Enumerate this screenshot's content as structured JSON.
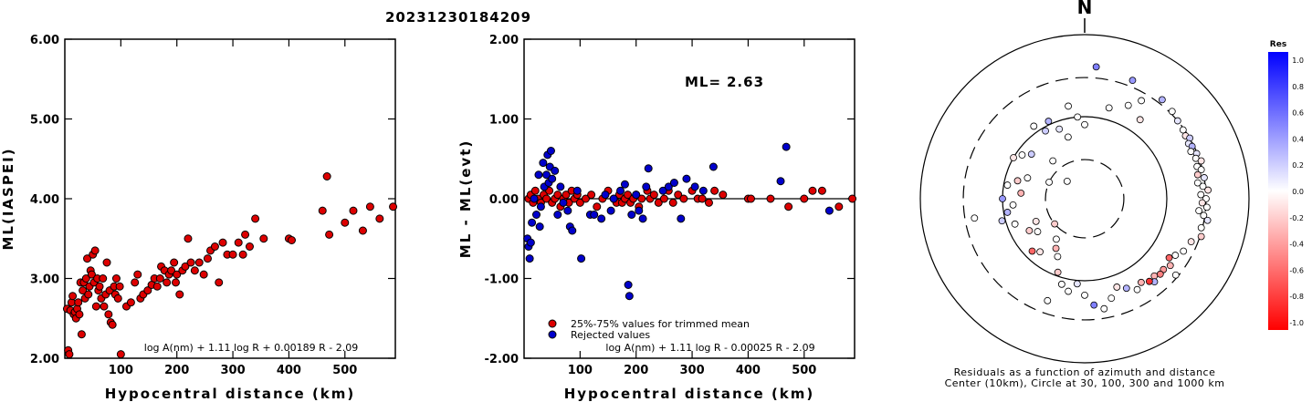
{
  "title": "20231230184209",
  "chart_data": [
    {
      "type": "scatter",
      "xlabel": "Hypocentral distance (km)",
      "ylabel": "ML(IASPEI)",
      "xlim": [
        0,
        590
      ],
      "ylim": [
        2.0,
        6.0
      ],
      "xticks": [
        "100",
        "200",
        "300",
        "400",
        "500"
      ],
      "yticks": [
        "2.00",
        "3.00",
        "4.00",
        "5.00",
        "6.00"
      ],
      "formula": "log A(nm) + 1.11 log R + 0.00189 R - 2.09",
      "color": "#dd0000",
      "points": [
        [
          4,
          2.62
        ],
        [
          6,
          2.1
        ],
        [
          8,
          2.05
        ],
        [
          10,
          2.6
        ],
        [
          12,
          2.7
        ],
        [
          14,
          2.78
        ],
        [
          16,
          2.55
        ],
        [
          18,
          2.58
        ],
        [
          20,
          2.5
        ],
        [
          22,
          2.62
        ],
        [
          24,
          2.7
        ],
        [
          26,
          2.55
        ],
        [
          28,
          2.95
        ],
        [
          30,
          2.3
        ],
        [
          32,
          2.85
        ],
        [
          34,
          2.95
        ],
        [
          36,
          2.75
        ],
        [
          38,
          3.0
        ],
        [
          40,
          3.25
        ],
        [
          42,
          2.8
        ],
        [
          44,
          2.9
        ],
        [
          46,
          3.1
        ],
        [
          48,
          3.05
        ],
        [
          50,
          3.3
        ],
        [
          52,
          2.95
        ],
        [
          54,
          3.35
        ],
        [
          56,
          2.65
        ],
        [
          58,
          3.0
        ],
        [
          60,
          2.85
        ],
        [
          62,
          2.9
        ],
        [
          65,
          2.75
        ],
        [
          68,
          3.0
        ],
        [
          70,
          2.65
        ],
        [
          73,
          2.8
        ],
        [
          75,
          3.2
        ],
        [
          78,
          2.55
        ],
        [
          80,
          2.85
        ],
        [
          82,
          2.45
        ],
        [
          85,
          2.42
        ],
        [
          88,
          2.9
        ],
        [
          90,
          2.8
        ],
        [
          92,
          3.0
        ],
        [
          95,
          2.75
        ],
        [
          98,
          2.9
        ],
        [
          100,
          2.05
        ],
        [
          110,
          2.65
        ],
        [
          118,
          2.7
        ],
        [
          125,
          2.95
        ],
        [
          130,
          3.05
        ],
        [
          135,
          2.75
        ],
        [
          140,
          2.8
        ],
        [
          148,
          2.85
        ],
        [
          155,
          2.92
        ],
        [
          160,
          3.0
        ],
        [
          165,
          2.9
        ],
        [
          170,
          3.0
        ],
        [
          172,
          3.15
        ],
        [
          178,
          3.1
        ],
        [
          182,
          2.95
        ],
        [
          186,
          3.05
        ],
        [
          190,
          3.1
        ],
        [
          195,
          3.2
        ],
        [
          198,
          2.95
        ],
        [
          200,
          3.05
        ],
        [
          205,
          2.8
        ],
        [
          210,
          3.1
        ],
        [
          215,
          3.15
        ],
        [
          220,
          3.5
        ],
        [
          225,
          3.2
        ],
        [
          232,
          3.1
        ],
        [
          240,
          3.2
        ],
        [
          248,
          3.05
        ],
        [
          255,
          3.25
        ],
        [
          260,
          3.35
        ],
        [
          268,
          3.4
        ],
        [
          275,
          2.95
        ],
        [
          282,
          3.45
        ],
        [
          290,
          3.3
        ],
        [
          300,
          3.3
        ],
        [
          310,
          3.45
        ],
        [
          318,
          3.3
        ],
        [
          322,
          3.55
        ],
        [
          330,
          3.4
        ],
        [
          340,
          3.75
        ],
        [
          355,
          3.5
        ],
        [
          400,
          3.5
        ],
        [
          405,
          3.48
        ],
        [
          460,
          3.85
        ],
        [
          468,
          4.28
        ],
        [
          472,
          3.55
        ],
        [
          500,
          3.7
        ],
        [
          515,
          3.85
        ],
        [
          532,
          3.6
        ],
        [
          545,
          3.9
        ],
        [
          562,
          3.75
        ],
        [
          586,
          3.9
        ]
      ]
    },
    {
      "type": "scatter",
      "xlabel": "Hypocentral distance (km)",
      "ylabel": "ML - ML(evt)",
      "xlim": [
        0,
        590
      ],
      "ylim": [
        -2.0,
        2.0
      ],
      "xticks": [
        "100",
        "200",
        "300",
        "400",
        "500"
      ],
      "yticks": [
        "-2.00",
        "-1.00",
        "0.00",
        "1.00",
        "2.00"
      ],
      "ml_label": "ML=",
      "ml_value": "2.63",
      "legend": [
        "25%-75% values for trimmed mean",
        "Rejected values"
      ],
      "formula": "log A(nm) + 1.11 log R - 0.00025 R - 2.09",
      "trimmed_color": "#dd0000",
      "rejected_color": "#0000cc",
      "trimmed": [
        [
          8,
          0.0
        ],
        [
          12,
          0.05
        ],
        [
          16,
          -0.05
        ],
        [
          20,
          0.1
        ],
        [
          25,
          0.0
        ],
        [
          30,
          -0.05
        ],
        [
          35,
          0.05
        ],
        [
          40,
          0.0
        ],
        [
          45,
          0.1
        ],
        [
          50,
          -0.05
        ],
        [
          55,
          0.0
        ],
        [
          60,
          0.05
        ],
        [
          65,
          -0.1
        ],
        [
          70,
          0.0
        ],
        [
          75,
          0.05
        ],
        [
          80,
          -0.05
        ],
        [
          85,
          0.1
        ],
        [
          90,
          0.0
        ],
        [
          95,
          0.05
        ],
        [
          100,
          -0.05
        ],
        [
          110,
          0.0
        ],
        [
          120,
          0.05
        ],
        [
          130,
          -0.1
        ],
        [
          140,
          0.0
        ],
        [
          150,
          0.1
        ],
        [
          160,
          0.0
        ],
        [
          165,
          -0.05
        ],
        [
          170,
          0.05
        ],
        [
          175,
          -0.05
        ],
        [
          180,
          0.0
        ],
        [
          185,
          0.05
        ],
        [
          190,
          -0.05
        ],
        [
          195,
          0.0
        ],
        [
          200,
          0.05
        ],
        [
          205,
          -0.1
        ],
        [
          210,
          0.0
        ],
        [
          220,
          0.1
        ],
        [
          225,
          0.0
        ],
        [
          232,
          0.05
        ],
        [
          240,
          -0.05
        ],
        [
          250,
          0.0
        ],
        [
          258,
          0.1
        ],
        [
          266,
          -0.05
        ],
        [
          275,
          0.05
        ],
        [
          285,
          0.0
        ],
        [
          300,
          0.1
        ],
        [
          310,
          0.0
        ],
        [
          318,
          0.0
        ],
        [
          330,
          -0.05
        ],
        [
          340,
          0.1
        ],
        [
          355,
          0.05
        ],
        [
          400,
          0.0
        ],
        [
          405,
          0.0
        ],
        [
          440,
          0.0
        ],
        [
          472,
          -0.1
        ],
        [
          500,
          0.0
        ],
        [
          515,
          0.1
        ],
        [
          532,
          0.1
        ],
        [
          562,
          -0.1
        ],
        [
          586,
          0.0
        ]
      ],
      "rejected": [
        [
          6,
          -0.5
        ],
        [
          8,
          -0.6
        ],
        [
          10,
          -0.75
        ],
        [
          12,
          -0.55
        ],
        [
          14,
          -0.3
        ],
        [
          18,
          0.0
        ],
        [
          22,
          -0.2
        ],
        [
          26,
          0.3
        ],
        [
          28,
          -0.35
        ],
        [
          30,
          -0.1
        ],
        [
          34,
          0.45
        ],
        [
          36,
          0.15
        ],
        [
          40,
          0.3
        ],
        [
          42,
          0.55
        ],
        [
          44,
          0.2
        ],
        [
          46,
          0.4
        ],
        [
          48,
          0.6
        ],
        [
          50,
          0.25
        ],
        [
          55,
          0.35
        ],
        [
          60,
          -0.2
        ],
        [
          65,
          0.15
        ],
        [
          70,
          -0.05
        ],
        [
          78,
          -0.15
        ],
        [
          82,
          -0.35
        ],
        [
          86,
          -0.4
        ],
        [
          95,
          0.1
        ],
        [
          102,
          -0.75
        ],
        [
          118,
          -0.2
        ],
        [
          125,
          -0.2
        ],
        [
          138,
          -0.25
        ],
        [
          145,
          0.05
        ],
        [
          155,
          -0.15
        ],
        [
          160,
          0.0
        ],
        [
          172,
          0.1
        ],
        [
          180,
          0.18
        ],
        [
          186,
          -1.08
        ],
        [
          188,
          -1.22
        ],
        [
          192,
          -0.2
        ],
        [
          200,
          0.05
        ],
        [
          205,
          -0.15
        ],
        [
          212,
          -0.25
        ],
        [
          218,
          0.15
        ],
        [
          222,
          0.38
        ],
        [
          248,
          0.1
        ],
        [
          258,
          0.15
        ],
        [
          268,
          0.2
        ],
        [
          280,
          -0.25
        ],
        [
          290,
          0.25
        ],
        [
          305,
          0.15
        ],
        [
          320,
          0.1
        ],
        [
          338,
          0.4
        ],
        [
          458,
          0.22
        ],
        [
          468,
          0.65
        ],
        [
          545,
          -0.15
        ]
      ]
    },
    {
      "type": "scatter",
      "north_label": "N",
      "caption_line1": "Residuals as a function of azimuth and distance",
      "caption_line2": "Center (10km), Circle at 30, 100, 300 and 1000 km",
      "colorbar_title": "Res",
      "colorbar_ticks": [
        "1.0",
        "0.8",
        "0.6",
        "0.4",
        "0.2",
        "0.0",
        "-0.2",
        "-0.4",
        "-0.6",
        "-0.8",
        "-1.0"
      ],
      "circle_distances_km": [
        30,
        100,
        300,
        1000
      ],
      "points_az_dist_res": [
        [
          5,
          410,
          0.5
        ],
        [
          22,
          360,
          0.4
        ],
        [
          38,
          340,
          0.3
        ],
        [
          45,
          320,
          0.0
        ],
        [
          50,
          300,
          0.1
        ],
        [
          55,
          290,
          0.0
        ],
        [
          58,
          280,
          -0.1
        ],
        [
          60,
          300,
          0.2
        ],
        [
          62,
          270,
          0.1
        ],
        [
          64,
          285,
          0.3
        ],
        [
          66,
          260,
          0.0
        ],
        [
          68,
          295,
          0.1
        ],
        [
          70,
          275,
          0.0
        ],
        [
          72,
          310,
          -0.1
        ],
        [
          74,
          265,
          0.0
        ],
        [
          76,
          290,
          0.0
        ],
        [
          78,
          255,
          -0.2
        ],
        [
          80,
          300,
          0.1
        ],
        [
          82,
          245,
          0.0
        ],
        [
          84,
          280,
          0.0
        ],
        [
          86,
          320,
          -0.1
        ],
        [
          88,
          260,
          0.0
        ],
        [
          90,
          300,
          0.0
        ],
        [
          92,
          270,
          -0.1
        ],
        [
          94,
          310,
          0.0
        ],
        [
          96,
          250,
          0.0
        ],
        [
          98,
          290,
          0.0
        ],
        [
          100,
          330,
          0.1
        ],
        [
          104,
          290,
          0.0
        ],
        [
          108,
          310,
          -0.2
        ],
        [
          112,
          250,
          -0.1
        ],
        [
          118,
          230,
          0.0
        ],
        [
          122,
          200,
          0.0
        ],
        [
          125,
          180,
          -0.6
        ],
        [
          128,
          210,
          -0.3
        ],
        [
          132,
          195,
          -0.4
        ],
        [
          135,
          200,
          -0.5
        ],
        [
          138,
          185,
          -0.3
        ],
        [
          140,
          210,
          0.3
        ],
        [
          142,
          190,
          -0.8
        ],
        [
          146,
          170,
          -0.3
        ],
        [
          150,
          190,
          0.0
        ],
        [
          155,
          160,
          0.3
        ],
        [
          160,
          140,
          -0.1
        ],
        [
          165,
          180,
          0.0
        ],
        [
          170,
          230,
          0.0
        ],
        [
          175,
          200,
          0.5
        ],
        [
          180,
          150,
          0.0
        ],
        [
          185,
          110,
          0.1
        ],
        [
          190,
          140,
          0.0
        ],
        [
          195,
          120,
          0.0
        ],
        [
          200,
          90,
          -0.2
        ],
        [
          205,
          60,
          0.0
        ],
        [
          210,
          50,
          -0.3
        ],
        [
          215,
          40,
          0.0
        ],
        [
          220,
          70,
          -0.1
        ],
        [
          225,
          80,
          -0.6
        ],
        [
          230,
          30,
          -0.2
        ],
        [
          235,
          50,
          0.0
        ],
        [
          240,
          60,
          -0.2
        ],
        [
          245,
          45,
          -0.1
        ],
        [
          250,
          80,
          0.0
        ],
        [
          255,
          110,
          0.2
        ],
        [
          260,
          90,
          0.3
        ],
        [
          265,
          75,
          0.0
        ],
        [
          270,
          100,
          0.4
        ],
        [
          275,
          60,
          -0.3
        ],
        [
          280,
          90,
          0.0
        ],
        [
          285,
          70,
          -0.2
        ],
        [
          290,
          55,
          0.0
        ],
        [
          295,
          30,
          0.0
        ],
        [
          300,
          100,
          -0.1
        ],
        [
          305,
          85,
          0.0
        ],
        [
          310,
          70,
          0.2
        ],
        [
          315,
          20,
          0.0
        ],
        [
          320,
          40,
          0.0
        ],
        [
          325,
          120,
          0.0
        ],
        [
          330,
          90,
          0.2
        ],
        [
          335,
          110,
          0.3
        ],
        [
          340,
          80,
          0.1
        ],
        [
          345,
          60,
          0.0
        ],
        [
          350,
          140,
          0.0
        ],
        [
          355,
          100,
          0.0
        ],
        [
          0,
          80,
          0.0
        ],
        [
          15,
          140,
          0.0
        ],
        [
          25,
          180,
          0.0
        ],
        [
          35,
          150,
          -0.1
        ],
        [
          260,
          230,
          0.0
        ],
        [
          200,
          210,
          0.0
        ],
        [
          130,
          280,
          0.0
        ],
        [
          30,
          240,
          0.0
        ]
      ]
    }
  ]
}
